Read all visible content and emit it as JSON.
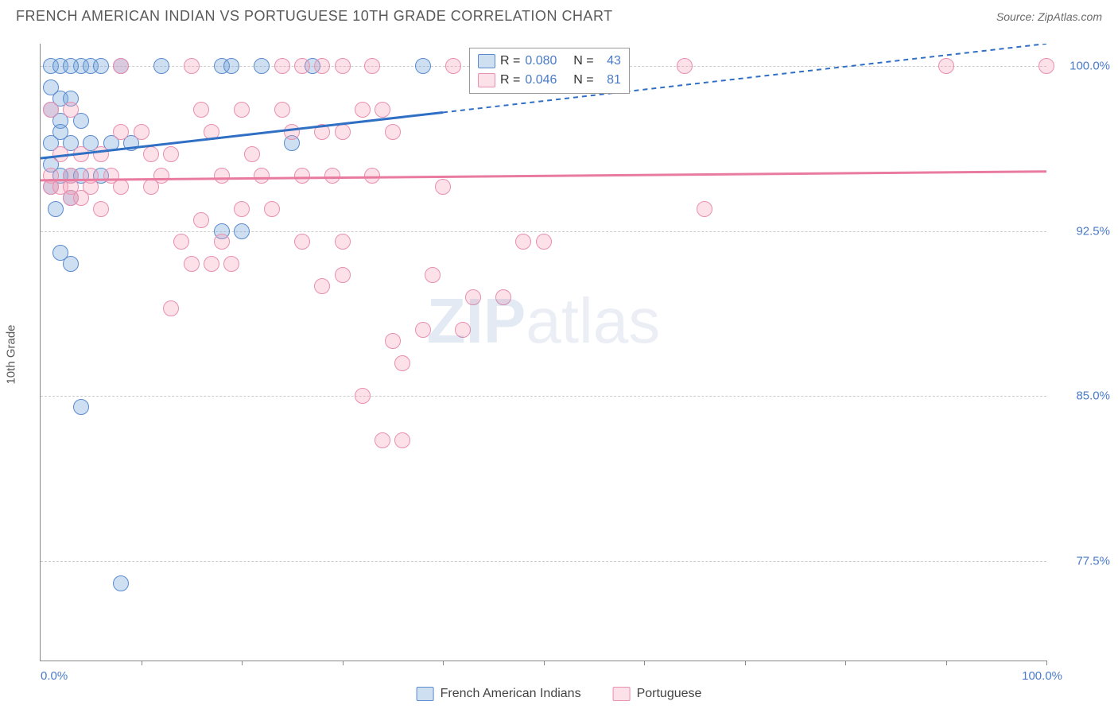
{
  "title": "FRENCH AMERICAN INDIAN VS PORTUGUESE 10TH GRADE CORRELATION CHART",
  "source": "Source: ZipAtlas.com",
  "watermark_bold": "ZIP",
  "watermark_rest": "atlas",
  "chart": {
    "type": "scatter",
    "ylabel": "10th Grade",
    "xlim": [
      0,
      100
    ],
    "ylim": [
      73,
      101
    ],
    "x_label_min": "0.0%",
    "x_label_max": "100.0%",
    "ytick_labels": [
      "77.5%",
      "85.0%",
      "92.5%",
      "100.0%"
    ],
    "ytick_vals": [
      77.5,
      85.0,
      92.5,
      100.0
    ],
    "xtick_positions": [
      10,
      20,
      30,
      40,
      50,
      60,
      70,
      80,
      90,
      100
    ],
    "grid_color": "#cccccc",
    "background_color": "#ffffff",
    "axis_color": "#888888",
    "tick_label_color": "#4a7bc8"
  },
  "series": [
    {
      "name": "French American Indians",
      "color_fill": "rgba(116,162,219,0.35)",
      "color_stroke": "#5a8bce",
      "R": "0.080",
      "N": "43",
      "trend": {
        "y_at_0": 95.8,
        "y_at_100": 101.0,
        "solid_until_x": 40,
        "color": "#2f6fc4",
        "width": 3
      },
      "points": [
        [
          1,
          100
        ],
        [
          2,
          100
        ],
        [
          4,
          100
        ],
        [
          5,
          100
        ],
        [
          3,
          100
        ],
        [
          6,
          100
        ],
        [
          8,
          100
        ],
        [
          12,
          100
        ],
        [
          18,
          100
        ],
        [
          19,
          100
        ],
        [
          22,
          100
        ],
        [
          27,
          100
        ],
        [
          38,
          100
        ],
        [
          1,
          99
        ],
        [
          2,
          98.5
        ],
        [
          3,
          98.5
        ],
        [
          1,
          98
        ],
        [
          2,
          97.5
        ],
        [
          4,
          97.5
        ],
        [
          2,
          97
        ],
        [
          1,
          96.5
        ],
        [
          3,
          96.5
        ],
        [
          5,
          96.5
        ],
        [
          7,
          96.5
        ],
        [
          9,
          96.5
        ],
        [
          25,
          96.5
        ],
        [
          1,
          95.5
        ],
        [
          3,
          95
        ],
        [
          2,
          95
        ],
        [
          4,
          95
        ],
        [
          6,
          95
        ],
        [
          1,
          94.5
        ],
        [
          3,
          94
        ],
        [
          1.5,
          93.5
        ],
        [
          2,
          91.5
        ],
        [
          3,
          91.0
        ],
        [
          18,
          92.5
        ],
        [
          20,
          92.5
        ],
        [
          4,
          84.5
        ],
        [
          8,
          76.5
        ]
      ]
    },
    {
      "name": "Portuguese",
      "color_fill": "rgba(244,154,180,0.30)",
      "color_stroke": "#e98fb0",
      "R": "0.046",
      "N": "81",
      "trend": {
        "y_at_0": 94.8,
        "y_at_100": 95.2,
        "solid_until_x": 100,
        "color": "#e97aa0",
        "width": 3
      },
      "points": [
        [
          8,
          100
        ],
        [
          15,
          100
        ],
        [
          24,
          100
        ],
        [
          26,
          100
        ],
        [
          28,
          100
        ],
        [
          30,
          100
        ],
        [
          33,
          100
        ],
        [
          41,
          100
        ],
        [
          64,
          100
        ],
        [
          90,
          100
        ],
        [
          100,
          100
        ],
        [
          1,
          98
        ],
        [
          3,
          98
        ],
        [
          16,
          98
        ],
        [
          20,
          98
        ],
        [
          24,
          98
        ],
        [
          32,
          98
        ],
        [
          34,
          98
        ],
        [
          8,
          97
        ],
        [
          10,
          97
        ],
        [
          17,
          97
        ],
        [
          25,
          97
        ],
        [
          28,
          97
        ],
        [
          30,
          97
        ],
        [
          35,
          97
        ],
        [
          2,
          96
        ],
        [
          4,
          96
        ],
        [
          6,
          96
        ],
        [
          11,
          96
        ],
        [
          13,
          96
        ],
        [
          21,
          96
        ],
        [
          1,
          95
        ],
        [
          3,
          95
        ],
        [
          5,
          95
        ],
        [
          7,
          95
        ],
        [
          12,
          95
        ],
        [
          18,
          95
        ],
        [
          22,
          95
        ],
        [
          26,
          95
        ],
        [
          29,
          95
        ],
        [
          33,
          95
        ],
        [
          1,
          94.5
        ],
        [
          2,
          94.5
        ],
        [
          3,
          94.5
        ],
        [
          5,
          94.5
        ],
        [
          8,
          94.5
        ],
        [
          11,
          94.5
        ],
        [
          40,
          94.5
        ],
        [
          6,
          93.5
        ],
        [
          20,
          93.5
        ],
        [
          23,
          93.5
        ],
        [
          16,
          93
        ],
        [
          66,
          93.5
        ],
        [
          14,
          92
        ],
        [
          18,
          92
        ],
        [
          26,
          92
        ],
        [
          30,
          92
        ],
        [
          48,
          92
        ],
        [
          50,
          92
        ],
        [
          3,
          94
        ],
        [
          4,
          94
        ],
        [
          15,
          91
        ],
        [
          17,
          91
        ],
        [
          19,
          91
        ],
        [
          28,
          90
        ],
        [
          30,
          90.5
        ],
        [
          39,
          90.5
        ],
        [
          43,
          89.5
        ],
        [
          46,
          89.5
        ],
        [
          38,
          88
        ],
        [
          42,
          88
        ],
        [
          13,
          89
        ],
        [
          35,
          87.5
        ],
        [
          36,
          86.5
        ],
        [
          32,
          85
        ],
        [
          34,
          83
        ],
        [
          36,
          83
        ]
      ]
    }
  ]
}
